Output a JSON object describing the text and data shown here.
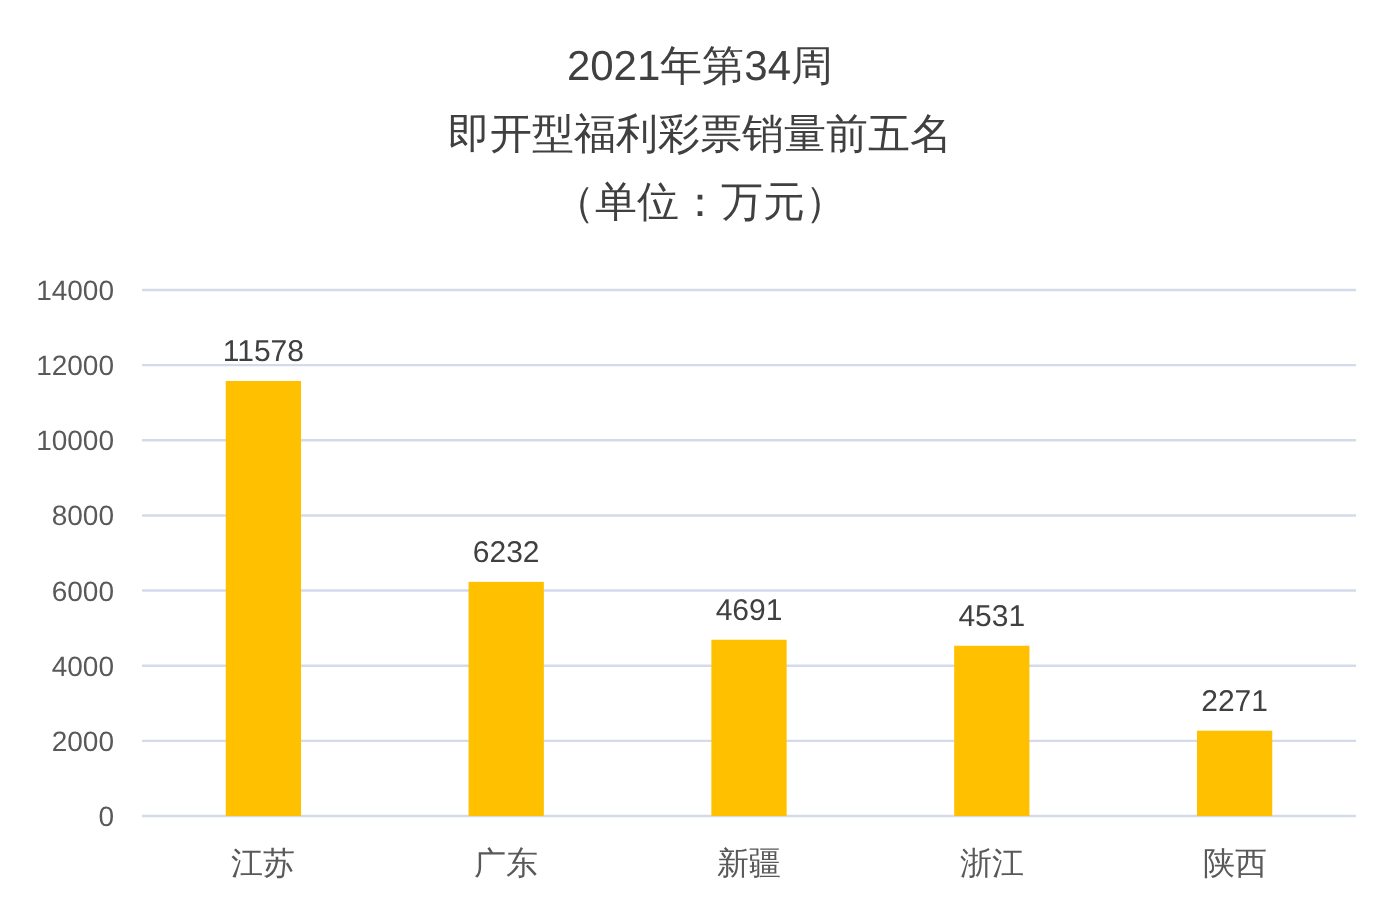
{
  "chart_data": {
    "type": "bar",
    "title": "2021年第34周",
    "subtitle": "即开型福利彩票销量前五名",
    "annotations": [
      "（单位：万元）"
    ],
    "categories": [
      "江苏",
      "广东",
      "新疆",
      "浙江",
      "陕西"
    ],
    "values": [
      11578,
      6232,
      4691,
      4531,
      2271
    ],
    "color": "#ffc000",
    "ylim": [
      0,
      14000
    ],
    "yticks": [
      0,
      2000,
      4000,
      6000,
      8000,
      10000,
      12000,
      14000
    ],
    "grid": "y",
    "data_labels": true
  }
}
